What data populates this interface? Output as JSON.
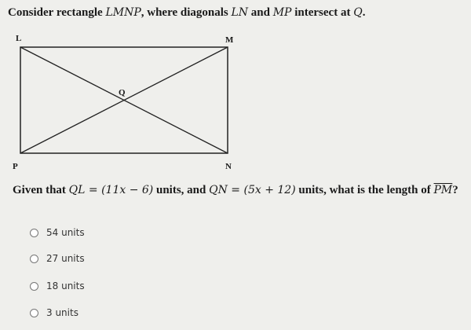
{
  "question": {
    "parts": [
      "Consider rectangle ",
      "LMNP",
      ", where diagonals ",
      "LN",
      " and ",
      "MP",
      " intersect at ",
      "Q",
      "."
    ]
  },
  "diagram": {
    "labels": [
      "L",
      "M",
      "Q",
      "P",
      "N"
    ]
  },
  "prompt": {
    "parts": [
      "Given that ",
      "QL = (11x − 6)",
      " units, and ",
      "QN = (5x + 12)",
      " units, what is the length of ",
      "PM",
      "?"
    ]
  },
  "options": [
    "54 units",
    "27 units",
    "18 units",
    "3 units"
  ]
}
